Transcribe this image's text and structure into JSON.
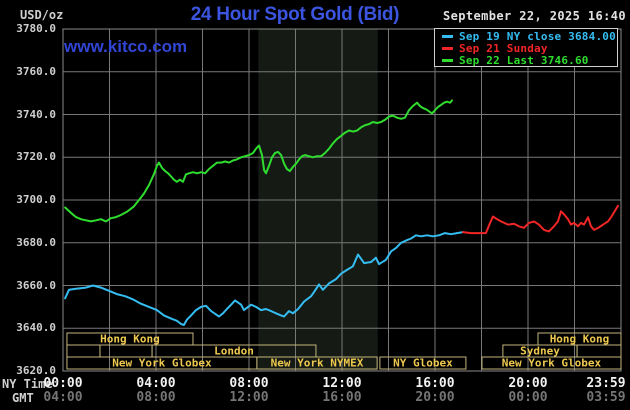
{
  "header": {
    "unit_label": "USD/oz",
    "title": "24 Hour Spot Gold (Bid)",
    "datetime": "September 22, 2025 16:40",
    "watermark": "www.kitco.com"
  },
  "legend": {
    "items": [
      {
        "label": "Sep 19 NY close 3684.00",
        "color": "#35bdf2"
      },
      {
        "label": "Sep 21 Sunday",
        "color": "#f22626"
      },
      {
        "label": "Sep 22 Last 3746.60",
        "color": "#2fdd2f"
      }
    ]
  },
  "axes": {
    "ny_time_label": "NY Time",
    "gmt_label": "GMT",
    "y_ticks": [
      "3780.0",
      "3760.0",
      "3740.0",
      "3720.0",
      "3700.0",
      "3680.0",
      "3660.0",
      "3640.0",
      "3620.0"
    ],
    "ny_ticks": [
      {
        "label": "00:00",
        "hour": 0
      },
      {
        "label": "04:00",
        "hour": 4
      },
      {
        "label": "08:00",
        "hour": 8
      },
      {
        "label": "12:00",
        "hour": 12
      },
      {
        "label": "16:00",
        "hour": 16
      },
      {
        "label": "20:00",
        "hour": 20
      },
      {
        "label": "23:59",
        "hour": 23.98
      }
    ],
    "gmt_ticks": [
      {
        "label": "04:00",
        "hour": 0
      },
      {
        "label": "08:00",
        "hour": 4
      },
      {
        "label": "12:00",
        "hour": 8
      },
      {
        "label": "16:00",
        "hour": 12
      },
      {
        "label": "20:00",
        "hour": 16
      },
      {
        "label": "00:00",
        "hour": 20
      },
      {
        "label": "03:59",
        "hour": 23.98
      }
    ]
  },
  "chart_data": {
    "type": "line",
    "title": "24 Hour Spot Gold (Bid)",
    "ylabel": "USD/oz",
    "ylim": [
      3620,
      3780
    ],
    "xlim_hours": [
      0,
      24
    ],
    "grid": {
      "x_step_hours": 2,
      "y_step": 20,
      "on": true
    },
    "band": {
      "start_hour": 8.4,
      "end_hour": 13.54
    },
    "series": [
      {
        "name": "Sep 19 NY close",
        "color": "#35bdf2",
        "points": [
          [
            0.09,
            3654
          ],
          [
            0.26,
            3658
          ],
          [
            0.56,
            3658.5
          ],
          [
            0.99,
            3659
          ],
          [
            1.29,
            3660
          ],
          [
            1.63,
            3659
          ],
          [
            1.98,
            3657.5
          ],
          [
            2.32,
            3656
          ],
          [
            2.67,
            3655
          ],
          [
            3.01,
            3653.5
          ],
          [
            3.35,
            3651.5
          ],
          [
            3.7,
            3650
          ],
          [
            4.04,
            3648.5
          ],
          [
            4.34,
            3646
          ],
          [
            4.65,
            3644.5
          ],
          [
            4.9,
            3643.5
          ],
          [
            5.08,
            3642
          ],
          [
            5.2,
            3641.5
          ],
          [
            5.33,
            3644
          ],
          [
            5.51,
            3646
          ],
          [
            5.72,
            3648.5
          ],
          [
            5.94,
            3650
          ],
          [
            6.15,
            3650.5
          ],
          [
            6.37,
            3648
          ],
          [
            6.58,
            3646.5
          ],
          [
            6.71,
            3645.5
          ],
          [
            6.88,
            3647
          ],
          [
            7.05,
            3649
          ],
          [
            7.23,
            3651
          ],
          [
            7.4,
            3653
          ],
          [
            7.53,
            3652
          ],
          [
            7.66,
            3651
          ],
          [
            7.78,
            3648.5
          ],
          [
            7.96,
            3650
          ],
          [
            8.09,
            3651
          ],
          [
            8.3,
            3650
          ],
          [
            8.52,
            3648.5
          ],
          [
            8.73,
            3649
          ],
          [
            8.95,
            3648
          ],
          [
            9.16,
            3647
          ],
          [
            9.38,
            3646
          ],
          [
            9.51,
            3645.5
          ],
          [
            9.72,
            3648
          ],
          [
            9.89,
            3647
          ],
          [
            10.11,
            3649
          ],
          [
            10.37,
            3652.5
          ],
          [
            10.67,
            3655
          ],
          [
            10.8,
            3657
          ],
          [
            11.01,
            3660.5
          ],
          [
            11.18,
            3658
          ],
          [
            11.44,
            3661
          ],
          [
            11.74,
            3663
          ],
          [
            11.96,
            3665.5
          ],
          [
            12.17,
            3667
          ],
          [
            12.47,
            3669
          ],
          [
            12.69,
            3674.5
          ],
          [
            12.95,
            3670.5
          ],
          [
            13.25,
            3671
          ],
          [
            13.46,
            3673
          ],
          [
            13.59,
            3670
          ],
          [
            13.89,
            3672
          ],
          [
            14.11,
            3676
          ],
          [
            14.32,
            3677.5
          ],
          [
            14.54,
            3680
          ],
          [
            14.75,
            3681
          ],
          [
            14.97,
            3682
          ],
          [
            15.18,
            3683.5
          ],
          [
            15.4,
            3683
          ],
          [
            15.65,
            3683.5
          ],
          [
            15.91,
            3683
          ],
          [
            16.17,
            3683.5
          ],
          [
            16.43,
            3684.5
          ],
          [
            16.69,
            3684
          ],
          [
            16.95,
            3684.5
          ],
          [
            17.2,
            3685
          ]
        ]
      },
      {
        "name": "Sep 21 Sunday",
        "color": "#f22626",
        "points": [
          [
            17.2,
            3685
          ],
          [
            17.55,
            3684.5
          ],
          [
            17.89,
            3684.5
          ],
          [
            18.19,
            3684.5
          ],
          [
            18.32,
            3688
          ],
          [
            18.49,
            3692.3
          ],
          [
            18.67,
            3691
          ],
          [
            18.84,
            3690
          ],
          [
            19.14,
            3688.5
          ],
          [
            19.4,
            3688.9
          ],
          [
            19.61,
            3687.7
          ],
          [
            19.83,
            3687
          ],
          [
            20.04,
            3689.3
          ],
          [
            20.26,
            3690
          ],
          [
            20.47,
            3688.5
          ],
          [
            20.69,
            3686
          ],
          [
            20.9,
            3685.3
          ],
          [
            21.12,
            3687.7
          ],
          [
            21.29,
            3690
          ],
          [
            21.42,
            3694.7
          ],
          [
            21.55,
            3693.3
          ],
          [
            21.72,
            3691
          ],
          [
            21.85,
            3688.5
          ],
          [
            21.98,
            3689.3
          ],
          [
            22.15,
            3687.7
          ],
          [
            22.28,
            3689.3
          ],
          [
            22.41,
            3688.5
          ],
          [
            22.58,
            3691.9
          ],
          [
            22.71,
            3687.7
          ],
          [
            22.84,
            3686
          ],
          [
            23.01,
            3686.9
          ],
          [
            23.23,
            3688.5
          ],
          [
            23.44,
            3690
          ],
          [
            23.57,
            3691.9
          ],
          [
            23.7,
            3694.2
          ],
          [
            23.87,
            3697.3
          ]
        ]
      },
      {
        "name": "Sep 22 Last",
        "color": "#2fdd2f",
        "points": [
          [
            0.09,
            3696.5
          ],
          [
            0.34,
            3694
          ],
          [
            0.56,
            3692
          ],
          [
            0.77,
            3691
          ],
          [
            0.99,
            3690.5
          ],
          [
            1.2,
            3690
          ],
          [
            1.42,
            3690.5
          ],
          [
            1.63,
            3691
          ],
          [
            1.85,
            3690
          ],
          [
            2.06,
            3691.5
          ],
          [
            2.28,
            3692
          ],
          [
            2.49,
            3693
          ],
          [
            2.75,
            3694.5
          ],
          [
            3.05,
            3697
          ],
          [
            3.27,
            3700
          ],
          [
            3.48,
            3703
          ],
          [
            3.7,
            3707
          ],
          [
            3.91,
            3712
          ],
          [
            4.04,
            3716
          ],
          [
            4.13,
            3717.5
          ],
          [
            4.26,
            3715
          ],
          [
            4.39,
            3713.5
          ],
          [
            4.52,
            3712.5
          ],
          [
            4.65,
            3711
          ],
          [
            4.77,
            3709.5
          ],
          [
            4.9,
            3708.5
          ],
          [
            5.03,
            3709.5
          ],
          [
            5.16,
            3708.5
          ],
          [
            5.29,
            3712
          ],
          [
            5.42,
            3712.5
          ],
          [
            5.59,
            3713
          ],
          [
            5.76,
            3712.5
          ],
          [
            5.94,
            3713
          ],
          [
            6.11,
            3712.5
          ],
          [
            6.28,
            3714.5
          ],
          [
            6.45,
            3716
          ],
          [
            6.62,
            3717.5
          ],
          [
            6.8,
            3717.5
          ],
          [
            6.97,
            3718
          ],
          [
            7.14,
            3717.5
          ],
          [
            7.31,
            3718.5
          ],
          [
            7.48,
            3719
          ],
          [
            7.66,
            3720
          ],
          [
            7.83,
            3720.5
          ],
          [
            8,
            3721
          ],
          [
            8.17,
            3722
          ],
          [
            8.3,
            3724
          ],
          [
            8.43,
            3725.5
          ],
          [
            8.56,
            3721
          ],
          [
            8.65,
            3714
          ],
          [
            8.73,
            3712.5
          ],
          [
            8.86,
            3716
          ],
          [
            8.99,
            3720
          ],
          [
            9.12,
            3722
          ],
          [
            9.25,
            3722.5
          ],
          [
            9.38,
            3721
          ],
          [
            9.51,
            3717
          ],
          [
            9.63,
            3714.5
          ],
          [
            9.76,
            3713.5
          ],
          [
            9.89,
            3715.5
          ],
          [
            10.02,
            3717
          ],
          [
            10.15,
            3719
          ],
          [
            10.28,
            3720.5
          ],
          [
            10.41,
            3721
          ],
          [
            10.58,
            3720.5
          ],
          [
            10.75,
            3720
          ],
          [
            10.92,
            3720.5
          ],
          [
            11.1,
            3720.5
          ],
          [
            11.27,
            3722
          ],
          [
            11.44,
            3724
          ],
          [
            11.61,
            3726.5
          ],
          [
            11.78,
            3728.5
          ],
          [
            11.96,
            3730
          ],
          [
            12.13,
            3731.5
          ],
          [
            12.3,
            3732.5
          ],
          [
            12.47,
            3732
          ],
          [
            12.65,
            3732.5
          ],
          [
            12.82,
            3734
          ],
          [
            12.99,
            3735
          ],
          [
            13.16,
            3735.5
          ],
          [
            13.33,
            3736.5
          ],
          [
            13.51,
            3736
          ],
          [
            13.68,
            3736.5
          ],
          [
            13.85,
            3737.5
          ],
          [
            14.02,
            3739
          ],
          [
            14.19,
            3739.5
          ],
          [
            14.37,
            3738.5
          ],
          [
            14.54,
            3738
          ],
          [
            14.71,
            3738.5
          ],
          [
            14.88,
            3742
          ],
          [
            15.05,
            3744
          ],
          [
            15.23,
            3745.5
          ],
          [
            15.35,
            3744
          ],
          [
            15.48,
            3743
          ],
          [
            15.61,
            3742.5
          ],
          [
            15.74,
            3741.5
          ],
          [
            15.87,
            3740.5
          ],
          [
            16,
            3742
          ],
          [
            16.13,
            3743.5
          ],
          [
            16.26,
            3744.5
          ],
          [
            16.39,
            3745.5
          ],
          [
            16.52,
            3746
          ],
          [
            16.65,
            3745.5
          ],
          [
            16.73,
            3746.6
          ]
        ]
      }
    ],
    "sessions": [
      {
        "row": 0,
        "start_hour": 0.17,
        "end_hour": 5.59,
        "label": "Hong Kong"
      },
      {
        "row": 0,
        "start_hour": 20.43,
        "end_hour": 24,
        "label": "Hong Kong"
      },
      {
        "row": 1,
        "start_hour": 0.17,
        "end_hour": 1.59,
        "label": ""
      },
      {
        "row": 1,
        "start_hour": 1.59,
        "end_hour": 3.83,
        "label": ""
      },
      {
        "row": 1,
        "start_hour": 3.83,
        "end_hour": 10.88,
        "label": "London"
      },
      {
        "row": 1,
        "start_hour": 18.92,
        "end_hour": 22.11,
        "label": "Sydney"
      },
      {
        "row": 1,
        "start_hour": 22.11,
        "end_hour": 24,
        "label": ""
      },
      {
        "row": 2,
        "start_hour": 0.17,
        "end_hour": 8.34,
        "label": "New York Globex"
      },
      {
        "row": 2,
        "start_hour": 8.34,
        "end_hour": 13.51,
        "label": "New York NYMEX"
      },
      {
        "row": 2,
        "start_hour": 13.63,
        "end_hour": 17.33,
        "label": "NY Globex"
      },
      {
        "row": 2,
        "start_hour": 18.02,
        "end_hour": 24,
        "label": "New York Globex"
      }
    ]
  },
  "colors": {
    "background": "#000000",
    "grid": "#787878",
    "plot_border": "#8a8a8a",
    "band": "#151a15",
    "session_border": "#c2b57b",
    "session_text": "#eec94f",
    "title_blue": "#3b55e0",
    "kitco_blue": "#3246d6",
    "axis_text": "#cfcfcf",
    "time_text": "#f2f2f2",
    "gmt_text": "#757575",
    "date_text": "#e2e2e2"
  }
}
